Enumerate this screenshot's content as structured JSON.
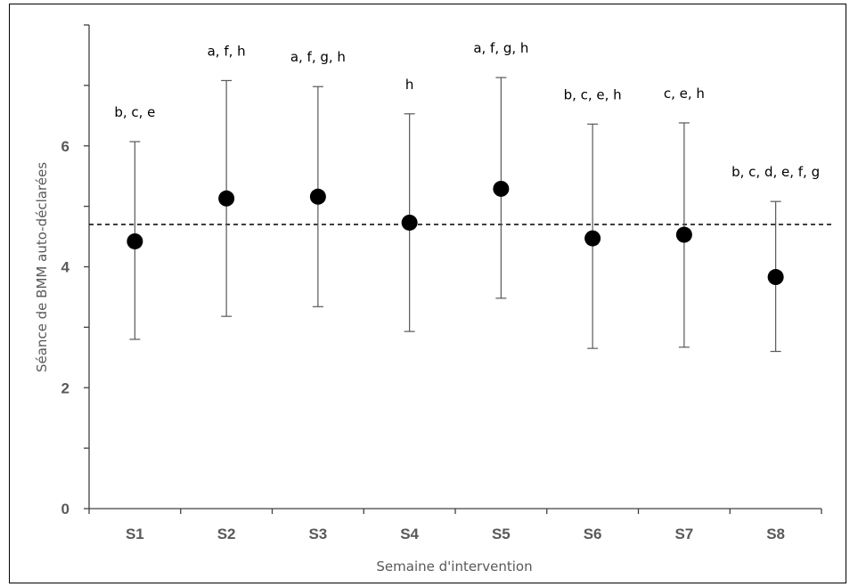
{
  "chart_data": {
    "type": "scatter",
    "title": "",
    "xlabel": "Semaine d'intervention",
    "ylabel": "Séance de BMM auto-déclarées",
    "ylim": [
      0,
      8
    ],
    "yticks": [
      0,
      2,
      4,
      6
    ],
    "categories": [
      "S1",
      "S2",
      "S3",
      "S4",
      "S5",
      "S6",
      "S7",
      "S8"
    ],
    "means": [
      4.42,
      5.13,
      5.16,
      4.73,
      5.29,
      4.47,
      4.53,
      3.83
    ],
    "upper": [
      6.07,
      7.08,
      6.98,
      6.53,
      7.13,
      6.36,
      6.38,
      5.08
    ],
    "lower": [
      2.8,
      3.18,
      3.34,
      2.93,
      3.48,
      2.65,
      2.67,
      2.6
    ],
    "significance_labels": [
      "b, c, e",
      "a, f, h",
      "a, f, g, h",
      "h",
      "a, f, g, h",
      "b, c, e, h",
      "c, e, h",
      "b, c, d, e, f, g"
    ],
    "reference_line": 4.7,
    "grid": false,
    "legend": "none",
    "colors": {
      "marker": "#000000",
      "error_bar": "#595959",
      "axis": "#404040",
      "reference_line": "#000000"
    }
  }
}
